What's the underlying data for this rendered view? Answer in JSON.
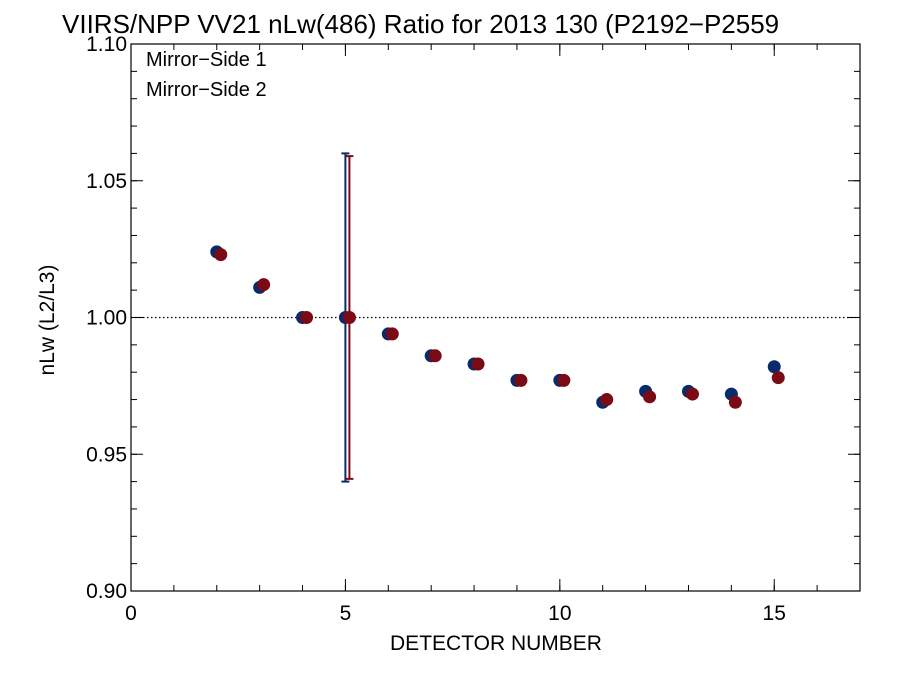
{
  "chart_data": {
    "type": "scatter",
    "title": "VIIRS/NPP VV21 nLw(486) Ratio for 2013 130 (P2192−P2559",
    "xlabel": "DETECTOR NUMBER",
    "ylabel": "nLw (L2/L3)",
    "xlim": [
      0,
      17
    ],
    "ylim": [
      0.9,
      1.1
    ],
    "x_ticks": [
      0,
      5,
      10,
      15
    ],
    "x_tick_labels": [
      "0",
      "5",
      "10",
      "15"
    ],
    "x_minor_step": 1,
    "y_ticks": [
      0.9,
      0.95,
      1.0,
      1.05,
      1.1
    ],
    "y_tick_labels": [
      "0.90",
      "0.95",
      "1.00",
      "1.05",
      "1.10"
    ],
    "y_minor_step": 0.01,
    "reference_line": {
      "y": 1.0,
      "style": "dotted"
    },
    "legend_position": "top-left",
    "series": [
      {
        "name": "Mirror−Side 1",
        "color": "#0a2a6e",
        "x": [
          2,
          3,
          4,
          5,
          6,
          7,
          8,
          9,
          10,
          11,
          12,
          13,
          14,
          15
        ],
        "values": [
          1.024,
          1.011,
          1.0,
          1.0,
          0.994,
          0.986,
          0.983,
          0.977,
          0.977,
          0.969,
          0.973,
          0.973,
          0.972,
          0.982
        ],
        "error_bars": [
          {
            "x": 5,
            "low": 0.94,
            "high": 1.06
          }
        ]
      },
      {
        "name": "Mirror−Side 2",
        "color": "#7a0a14",
        "x": [
          2,
          3,
          4,
          5,
          6,
          7,
          8,
          9,
          10,
          11,
          12,
          13,
          14,
          15
        ],
        "values": [
          1.023,
          1.012,
          1.0,
          1.0,
          0.994,
          0.986,
          0.983,
          0.977,
          0.977,
          0.97,
          0.971,
          0.972,
          0.969,
          0.978
        ],
        "error_bars": [
          {
            "x": 5,
            "low": 0.941,
            "high": 1.059
          }
        ]
      }
    ]
  }
}
